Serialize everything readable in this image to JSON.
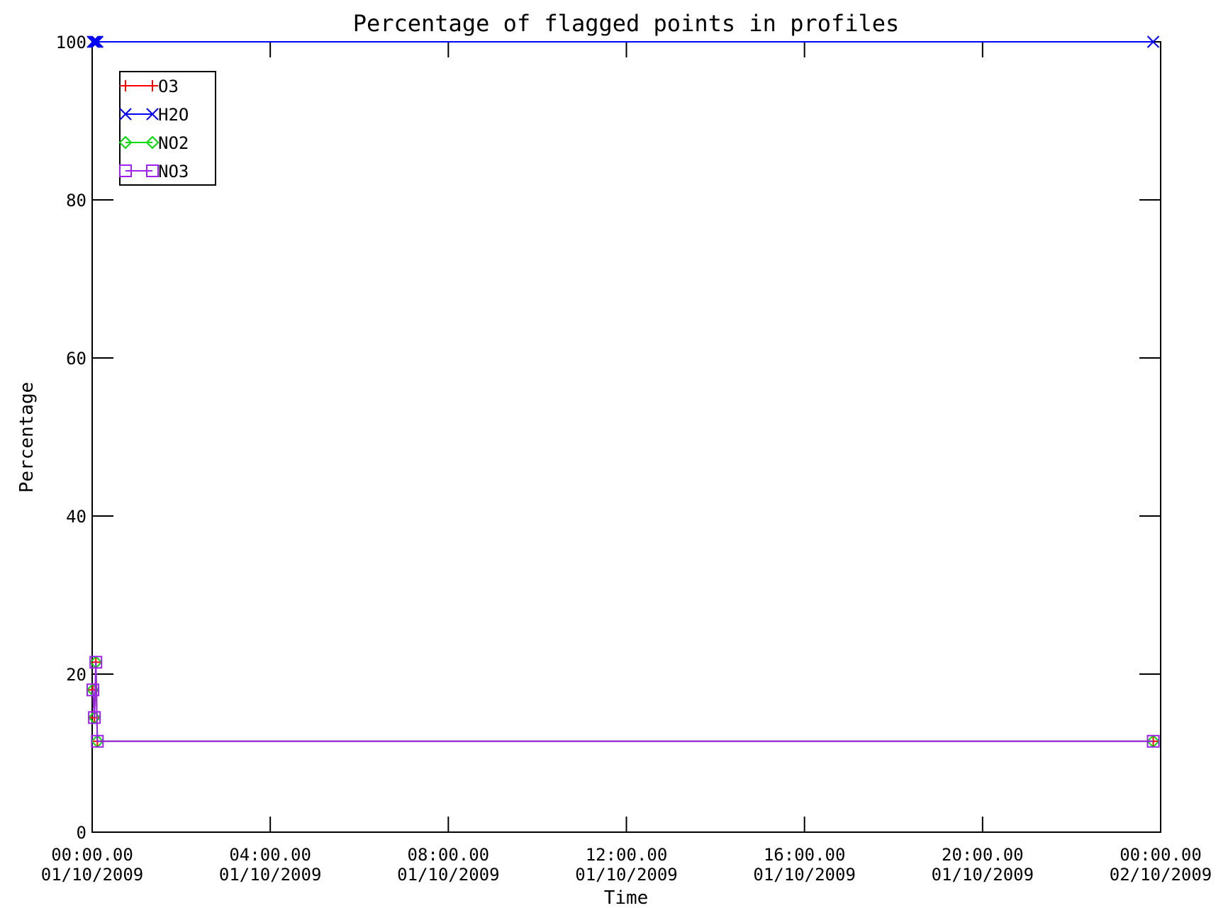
{
  "chart_data": {
    "type": "line",
    "title": "Percentage of flagged points in profiles",
    "xlabel": "Time",
    "ylabel": "Percentage",
    "xlim": [
      "2009-10-01T00:00",
      "2009-10-02T00:00"
    ],
    "ylim": [
      0,
      100
    ],
    "x_ticks": [
      "2009-10-01T00:00",
      "2009-10-01T04:00",
      "2009-10-01T08:00",
      "2009-10-01T12:00",
      "2009-10-01T16:00",
      "2009-10-01T20:00",
      "2009-10-02T00:00"
    ],
    "x_tick_labels": [
      [
        "00:00.00",
        "01/10/2009"
      ],
      [
        "04:00.00",
        "01/10/2009"
      ],
      [
        "08:00.00",
        "01/10/2009"
      ],
      [
        "12:00.00",
        "01/10/2009"
      ],
      [
        "16:00.00",
        "01/10/2009"
      ],
      [
        "20:00.00",
        "01/10/2009"
      ],
      [
        "00:00.00",
        "02/10/2009"
      ]
    ],
    "y_ticks": [
      0,
      20,
      40,
      60,
      80,
      100
    ],
    "y_tick_labels": [
      "0",
      "20",
      "40",
      "60",
      "80",
      "100"
    ],
    "legend_position": "top-left",
    "grid": false,
    "series": [
      {
        "name": "O3",
        "color": "#ff0000",
        "marker": "plus",
        "x": [
          "2009-10-01T00:01",
          "2009-10-01T00:03",
          "2009-10-01T00:05",
          "2009-10-01T00:07",
          "2009-10-01T23:50"
        ],
        "y": [
          18,
          14.5,
          21.5,
          11.5,
          11.5
        ]
      },
      {
        "name": "H2O",
        "color": "#0000ff",
        "marker": "x",
        "x": [
          "2009-10-01T00:01",
          "2009-10-01T00:03",
          "2009-10-01T00:05",
          "2009-10-01T00:07",
          "2009-10-01T23:50"
        ],
        "y": [
          100,
          100,
          100,
          100,
          100
        ]
      },
      {
        "name": "NO2",
        "color": "#00dd00",
        "marker": "diamond",
        "x": [
          "2009-10-01T00:01",
          "2009-10-01T00:03",
          "2009-10-01T00:05",
          "2009-10-01T00:07",
          "2009-10-01T23:50"
        ],
        "y": [
          18,
          14.5,
          21.5,
          11.5,
          11.5
        ]
      },
      {
        "name": "NO3",
        "color": "#a020f0",
        "marker": "square",
        "x": [
          "2009-10-01T00:01",
          "2009-10-01T00:03",
          "2009-10-01T00:05",
          "2009-10-01T00:07",
          "2009-10-01T23:50"
        ],
        "y": [
          18,
          14.5,
          21.5,
          11.5,
          11.5
        ]
      }
    ]
  }
}
